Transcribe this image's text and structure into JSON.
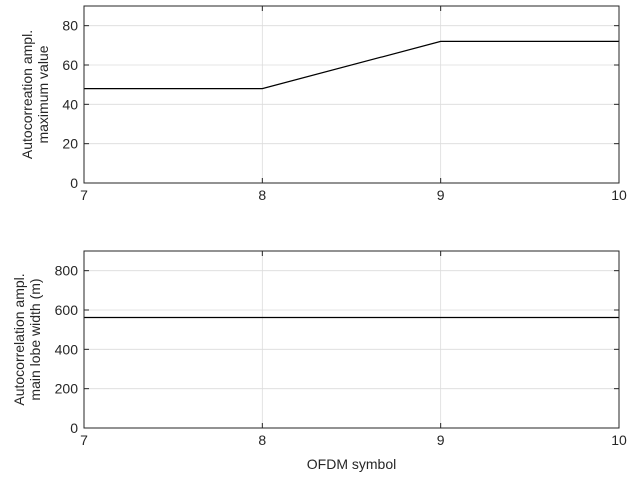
{
  "chart_data": [
    {
      "type": "line",
      "title": "",
      "xlabel": "",
      "ylabel": [
        "Autocorreation ampl.",
        "maximum value"
      ],
      "xlim": [
        7,
        10
      ],
      "ylim": [
        0,
        90
      ],
      "xticks": [
        7,
        8,
        9,
        10
      ],
      "yticks": [
        0,
        20,
        40,
        60,
        80
      ],
      "grid": true,
      "series": [
        {
          "x": [
            7,
            8,
            9,
            10
          ],
          "y": [
            48,
            48,
            72,
            72
          ],
          "color": "#000000"
        }
      ]
    },
    {
      "type": "line",
      "title": "",
      "xlabel": "OFDM symbol",
      "ylabel": [
        "Autocorrelation ampl.",
        "main lobe width (m)"
      ],
      "xlim": [
        7,
        10
      ],
      "ylim": [
        0,
        900
      ],
      "xticks": [
        7,
        8,
        9,
        10
      ],
      "yticks": [
        0,
        200,
        400,
        600,
        800
      ],
      "grid": true,
      "series": [
        {
          "x": [
            7,
            8,
            9,
            10
          ],
          "y": [
            562,
            562,
            562,
            562
          ],
          "color": "#000000"
        }
      ]
    }
  ]
}
